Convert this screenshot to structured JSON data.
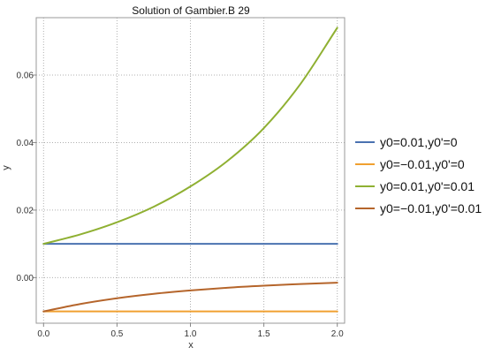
{
  "chart_data": {
    "type": "line",
    "title": "Solution of Gambier.B 29",
    "xlabel": "x",
    "ylabel": "y",
    "xlim": [
      -0.05,
      2.05
    ],
    "ylim": [
      -0.0135,
      0.077
    ],
    "x_ticks": [
      0.0,
      0.5,
      1.0,
      1.5,
      2.0
    ],
    "x_tick_labels": [
      "0.0",
      "0.5",
      "1.0",
      "1.5",
      "2.0"
    ],
    "y_ticks": [
      0.0,
      0.02,
      0.04,
      0.06
    ],
    "y_tick_labels": [
      "0.00",
      "0.02",
      "0.04",
      "0.06"
    ],
    "grid": true,
    "legend_position": "right",
    "x": [
      0.0,
      0.25,
      0.5,
      0.75,
      1.0,
      1.25,
      1.5,
      1.75,
      2.0
    ],
    "series": [
      {
        "name": "y0=0.01,y0'=0",
        "color": "#4a72b0",
        "values": [
          0.01,
          0.01,
          0.01,
          0.01,
          0.01,
          0.01,
          0.01,
          0.01,
          0.01
        ]
      },
      {
        "name": "y0=−0.01,y0'=0",
        "color": "#f0a030",
        "values": [
          -0.01,
          -0.01,
          -0.01,
          -0.01,
          -0.01,
          -0.01,
          -0.01,
          -0.01,
          -0.01
        ]
      },
      {
        "name": "y0=0.01,y0'=0.01",
        "color": "#8fb032",
        "values": [
          0.01,
          0.0128,
          0.0164,
          0.021,
          0.027,
          0.0345,
          0.0443,
          0.0574,
          0.074
        ]
      },
      {
        "name": "y0=−0.01,y0'=0.01",
        "color": "#b5652b",
        "values": [
          -0.01,
          -0.0078,
          -0.0061,
          -0.0048,
          -0.0038,
          -0.003,
          -0.0024,
          -0.0019,
          -0.0015
        ]
      }
    ]
  }
}
